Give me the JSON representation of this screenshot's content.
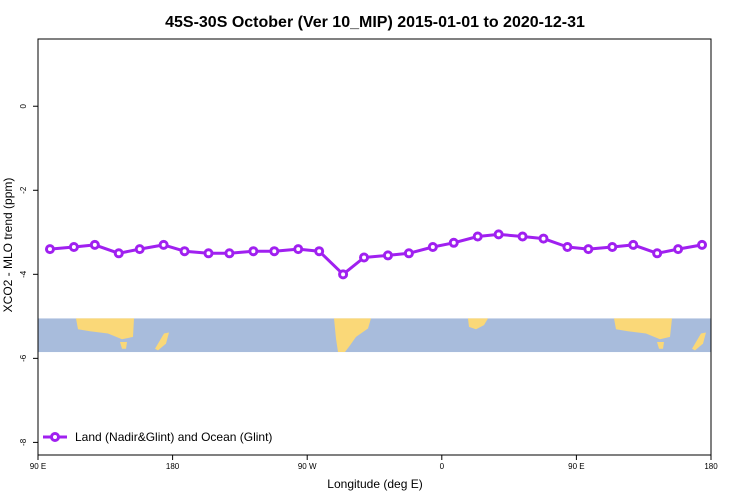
{
  "chart_data": {
    "type": "line",
    "title": "45S-30S October (Ver 10_MIP)   2015-01-01 to 2020-12-31",
    "xlabel": "Longitude (deg E)",
    "ylabel": "XCO2 - MLO trend (ppm)",
    "x_ticks": [
      {
        "value": 90,
        "label": "90 E"
      },
      {
        "value": 180,
        "label": "180"
      },
      {
        "value": 270,
        "label": "90 W"
      },
      {
        "value": 360,
        "label": "0"
      },
      {
        "value": 450,
        "label": "90 E"
      },
      {
        "value": 540,
        "label": "180"
      }
    ],
    "y_ticks": [
      {
        "value": 0,
        "label": "0"
      },
      {
        "value": -2,
        "label": "-2"
      },
      {
        "value": -4,
        "label": "-4"
      },
      {
        "value": -6,
        "label": "-6"
      },
      {
        "value": -8,
        "label": "-8"
      }
    ],
    "xlim": [
      90,
      540
    ],
    "ylim": [
      -8.3,
      1.6
    ],
    "grid": false,
    "legend_position": "bottom-left",
    "map_strip": {
      "y_range": [
        -5.85,
        -5.05
      ],
      "ocean_color": "#a8bcdc",
      "land_color": "#fad878"
    },
    "series": [
      {
        "name": "Land (Nadir&Glint) and Ocean (Glint)",
        "color": "#a020f0",
        "x": [
          98,
          114,
          128,
          144,
          158,
          174,
          188,
          204,
          218,
          234,
          248,
          264,
          278,
          294,
          308,
          324,
          338,
          354,
          368,
          384,
          398,
          414,
          428,
          444,
          458,
          474,
          488,
          504,
          518,
          534
        ],
        "y": [
          -3.4,
          -3.35,
          -3.3,
          -3.5,
          -3.4,
          -3.3,
          -3.45,
          -3.5,
          -3.5,
          -3.45,
          -3.45,
          -3.4,
          -3.45,
          -4.0,
          -3.6,
          -3.55,
          -3.5,
          -3.35,
          -3.25,
          -3.1,
          -3.05,
          -3.1,
          -3.15,
          -3.35,
          -3.4,
          -3.35,
          -3.3,
          -3.5,
          -3.4,
          -3.3
        ]
      }
    ]
  }
}
